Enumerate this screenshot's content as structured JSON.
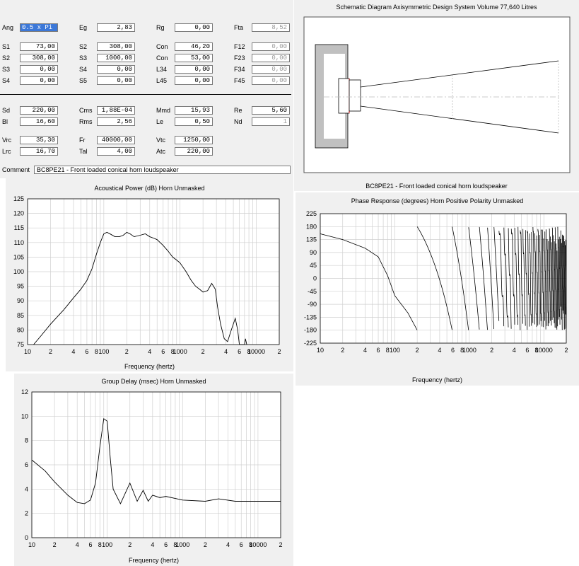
{
  "params": {
    "row1": [
      [
        "Ang",
        "0.5 x Pi"
      ],
      [
        "Eg",
        "2,83"
      ],
      [
        "Rg",
        "0,00"
      ],
      [
        "Fta",
        "8,52"
      ]
    ],
    "rowsA": [
      [
        [
          "S1",
          "73,00"
        ],
        [
          "S2",
          "308,00"
        ],
        [
          "Con",
          "46,20"
        ],
        [
          "F12",
          "0,00"
        ]
      ],
      [
        [
          "S2",
          "308,00"
        ],
        [
          "S3",
          "1000,00"
        ],
        [
          "Con",
          "53,00"
        ],
        [
          "F23",
          "0,00"
        ]
      ],
      [
        [
          "S3",
          "0,00"
        ],
        [
          "S4",
          "0,00"
        ],
        [
          "L34",
          "0,00"
        ],
        [
          "F34",
          "0,00"
        ]
      ],
      [
        [
          "S4",
          "0,00"
        ],
        [
          "S5",
          "0,00"
        ],
        [
          "L45",
          "0,00"
        ],
        [
          "F45",
          "0,00"
        ]
      ]
    ],
    "rowsB": [
      [
        [
          "Sd",
          "220,00"
        ],
        [
          "Cms",
          "1,88E-04"
        ],
        [
          "Mmd",
          "15,93"
        ],
        [
          "Re",
          "5,60"
        ]
      ],
      [
        [
          "Bl",
          "16,60"
        ],
        [
          "Rms",
          "2,56"
        ],
        [
          "Le",
          "0,50"
        ],
        [
          "Nd",
          "1"
        ]
      ]
    ],
    "rowsC": [
      [
        [
          "Vrc",
          "35,30"
        ],
        [
          "Fr",
          "40000,00"
        ],
        [
          "Vtc",
          "1250,00"
        ]
      ],
      [
        [
          "Lrc",
          "16,70"
        ],
        [
          "Tal",
          "4,00"
        ],
        [
          "Atc",
          "220,00"
        ]
      ]
    ],
    "comment_label": "Comment",
    "comment_value": "BC8PE21 - Front loaded conical horn loudspeaker"
  },
  "schematic": {
    "title": "Schematic Diagram   Axisymmetric Design   System Volume 77,640 Litres",
    "caption": "BC8PE21 - Front loaded conical horn loudspeaker"
  },
  "chart_data": [
    {
      "type": "line",
      "title": "Acoustical Power (dB)   Horn   Unmasked",
      "xlabel": "Frequency (hertz)",
      "ylabel": "",
      "xscale": "log",
      "xlim": [
        10,
        20000
      ],
      "ylim": [
        75,
        125
      ],
      "yticks": [
        75,
        80,
        85,
        90,
        95,
        100,
        105,
        110,
        115,
        120,
        125
      ],
      "xticklabels": [
        "10",
        "2",
        "4",
        "6",
        "8",
        "100",
        "2",
        "4",
        "6",
        "8",
        "1000",
        "2",
        "4",
        "6",
        "8",
        "10000",
        "2"
      ],
      "series": [
        {
          "x": [
            12,
            15,
            20,
            30,
            40,
            50,
            60,
            70,
            80,
            90,
            100,
            110,
            120,
            140,
            160,
            180,
            200,
            220,
            250,
            300,
            350,
            400,
            450,
            500,
            600,
            700,
            800,
            900,
            1000,
            1200,
            1400,
            1600,
            1800,
            2000,
            2300,
            2600,
            2900,
            3100,
            3400,
            3800,
            4200,
            4700,
            5300,
            5700,
            6000,
            6300,
            7000,
            7200,
            7500
          ],
          "y": [
            75,
            78,
            82,
            87,
            91,
            94,
            97,
            101,
            106,
            110,
            113,
            113.5,
            113,
            112,
            112,
            112.5,
            113.5,
            113,
            112,
            112.5,
            113,
            112,
            111.5,
            111,
            109,
            107,
            105,
            104,
            103,
            100,
            97,
            95,
            94,
            93,
            93.5,
            96,
            94,
            88,
            82,
            77,
            76,
            80,
            84,
            80,
            75,
            75,
            75,
            77,
            75
          ]
        }
      ],
      "grid": true
    },
    {
      "type": "line",
      "title": "Phase Response (degrees)   Horn   Positive Polarity   Unmasked",
      "xlabel": "Frequency (hertz)",
      "ylabel": "",
      "xscale": "log",
      "xlim": [
        10,
        20000
      ],
      "ylim": [
        -225,
        225
      ],
      "yticks": [
        -225,
        -180,
        -135,
        -90,
        -45,
        0,
        45,
        90,
        135,
        180,
        225
      ],
      "xticklabels": [
        "10",
        "2",
        "4",
        "6",
        "8",
        "100",
        "2",
        "4",
        "6",
        "8",
        "1000",
        "2",
        "4",
        "6",
        "8",
        "10000",
        "2"
      ],
      "series": [
        {
          "x": [
            10,
            20,
            40,
            60,
            80,
            100,
            150,
            200
          ],
          "y": [
            155,
            135,
            105,
            75,
            10,
            -60,
            -120,
            -180
          ]
        }
      ],
      "note": "phase wraps repeatedly between +180 and -180 above 200 Hz",
      "grid": true
    },
    {
      "type": "line",
      "title": "Group Delay (msec)   Horn   Unmasked",
      "xlabel": "Frequency (hertz)",
      "ylabel": "",
      "xscale": "log",
      "xlim": [
        10,
        20000
      ],
      "ylim": [
        0,
        12
      ],
      "yticks": [
        0,
        2,
        4,
        6,
        8,
        10,
        12
      ],
      "xticklabels": [
        "10",
        "2",
        "4",
        "6",
        "8",
        "100",
        "2",
        "4",
        "6",
        "8",
        "1000",
        "2",
        "4",
        "6",
        "8",
        "10000",
        "2"
      ],
      "series": [
        {
          "x": [
            10,
            15,
            20,
            30,
            40,
            50,
            60,
            70,
            80,
            90,
            100,
            110,
            120,
            150,
            200,
            250,
            300,
            350,
            400,
            500,
            600,
            1000,
            2000,
            3000,
            5000,
            10000,
            20000
          ],
          "y": [
            6.4,
            5.5,
            4.6,
            3.5,
            2.9,
            2.8,
            3.1,
            4.5,
            7.5,
            9.8,
            9.6,
            6.5,
            4,
            2.8,
            4.5,
            3,
            3.9,
            3,
            3.5,
            3.3,
            3.4,
            3.1,
            3.0,
            3.2,
            3.0,
            3.0,
            3.0
          ]
        }
      ],
      "grid": true
    }
  ]
}
